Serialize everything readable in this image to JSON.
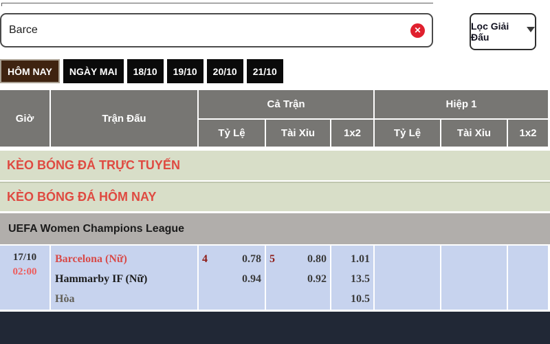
{
  "colors": {
    "accent_red": "#e0202e",
    "tab_active_brown": "#3f2310",
    "tab_black": "#0a0a0a",
    "header_gray": "#777673",
    "section_green_bg": "#d8dec8",
    "section_red_text": "#df4a41",
    "league_gray_bg": "#b1aeab",
    "match_blue_bg": "#c7d3ee",
    "time_red": "#ee5c5c",
    "team_red": "#d84a48",
    "line_maroon": "#8e1b15",
    "footer_navy": "#212836"
  },
  "search": {
    "value": "Barce",
    "clear_icon": "✕"
  },
  "filter": {
    "label": "Lọc Giải Đấu"
  },
  "tabs": [
    {
      "label": "HÔM NAY",
      "active": true
    },
    {
      "label": "NGÀY MAI",
      "active": false
    },
    {
      "label": "18/10",
      "active": false
    },
    {
      "label": "19/10",
      "active": false
    },
    {
      "label": "20/10",
      "active": false
    },
    {
      "label": "21/10",
      "active": false
    }
  ],
  "table_header": {
    "time": "Giờ",
    "match": "Trận Đấu",
    "full_time": "Cả Trận",
    "first_half": "Hiệp 1",
    "odds": "Tỷ Lệ",
    "over_under": "Tài Xỉu",
    "one_x_two": "1x2"
  },
  "sections": [
    {
      "label": "KÈO BÓNG ĐÁ TRỰC TUYẾN"
    },
    {
      "label": "KÈO BÓNG ĐÁ HÔM NAY"
    }
  ],
  "league": {
    "name": "UEFA Women Champions League"
  },
  "match": {
    "date": "17/10",
    "time": "02:00",
    "home_team": "Barcelona (Nữ)",
    "away_team": "Hammarby IF (Nữ)",
    "draw_label": "Hòa",
    "full_time": {
      "handicap_line": "4",
      "handicap_home": "0.78",
      "handicap_away": "0.94",
      "total_line": "5",
      "total_over": "0.80",
      "total_under": "0.92",
      "win_home": "1.01",
      "win_away": "13.5",
      "win_draw": "10.5"
    }
  }
}
